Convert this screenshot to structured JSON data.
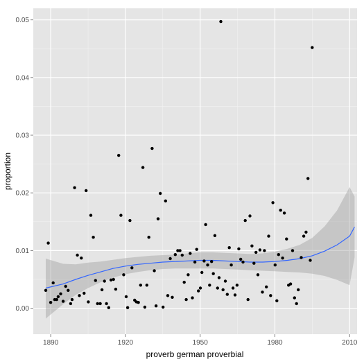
{
  "chart_data": {
    "type": "scatter",
    "title": "",
    "xlabel": "proverb german proverbial",
    "ylabel": "proportion",
    "xlim": [
      1883,
      2013
    ],
    "ylim": [
      -0.0045,
      0.052
    ],
    "x_ticks": [
      1890,
      1920,
      1950,
      1980,
      2010
    ],
    "y_ticks": [
      0.0,
      0.01,
      0.02,
      0.03,
      0.04,
      0.05
    ],
    "x_tick_labels": [
      "1890",
      "1920",
      "1950",
      "1980",
      "2010"
    ],
    "y_tick_labels": [
      "0.00",
      "0.01",
      "0.02",
      "0.03",
      "0.04",
      "0.05"
    ],
    "grid": true,
    "colors": {
      "panel": "#e5e5e5",
      "grid_major": "#ffffff",
      "grid_minor": "#f2f2f2",
      "points": "#000000",
      "smooth_line": "#3366ff",
      "ribbon": "#999999"
    },
    "points": [
      [
        1888,
        0.0031
      ],
      [
        1889,
        0.0113
      ],
      [
        1890,
        0.001
      ],
      [
        1891,
        0.0044
      ],
      [
        1891.6,
        0.0015
      ],
      [
        1892.4,
        0.0015
      ],
      [
        1893,
        0.002
      ],
      [
        1894,
        0.0025
      ],
      [
        1895,
        0.0012
      ],
      [
        1896,
        0.0038
      ],
      [
        1897,
        0.0031
      ],
      [
        1898,
        0.0008
      ],
      [
        1898.6,
        0.0015
      ],
      [
        1899.6,
        0.0209
      ],
      [
        1900.7,
        0.0092
      ],
      [
        1901.5,
        0.0022
      ],
      [
        1902.3,
        0.0087
      ],
      [
        1903.4,
        0.0026
      ],
      [
        1904.2,
        0.0204
      ],
      [
        1905.1,
        0.0011
      ],
      [
        1906.1,
        0.0161
      ],
      [
        1907.1,
        0.0123
      ],
      [
        1908,
        0.0048
      ],
      [
        1908.8,
        0.0008
      ],
      [
        1909.9,
        0.0008
      ],
      [
        1910.6,
        0.0032
      ],
      [
        1911.6,
        0.0047
      ],
      [
        1912.4,
        0.0008
      ],
      [
        1913.3,
        0.0001
      ],
      [
        1914.2,
        0.0049
      ],
      [
        1915.2,
        0.005
      ],
      [
        1916.1,
        0.0033
      ],
      [
        1917.3,
        0.0265
      ],
      [
        1918.2,
        0.0161
      ],
      [
        1919.3,
        0.0058
      ],
      [
        1920.3,
        0.002
      ],
      [
        1920.9,
        0.0001
      ],
      [
        1921.8,
        0.0152
      ],
      [
        1922.6,
        0.007
      ],
      [
        1923.7,
        0.0014
      ],
      [
        1924.4,
        0.0011
      ],
      [
        1925.2,
        0.001
      ],
      [
        1926.1,
        0.004
      ],
      [
        1927,
        0.0244
      ],
      [
        1927.8,
        0.0002
      ],
      [
        1928.6,
        0.004
      ],
      [
        1929.4,
        0.0123
      ],
      [
        1930.7,
        0.0277
      ],
      [
        1931.6,
        0.0065
      ],
      [
        1932.3,
        0.0004
      ],
      [
        1933.1,
        0.0155
      ],
      [
        1934,
        0.0199
      ],
      [
        1935.1,
        0.0002
      ],
      [
        1936.1,
        0.0186
      ],
      [
        1937,
        0.0022
      ],
      [
        1938,
        0.0086
      ],
      [
        1938.8,
        0.0019
      ],
      [
        1940,
        0.0093
      ],
      [
        1941,
        0.01
      ],
      [
        1941.9,
        0.01
      ],
      [
        1942.8,
        0.0092
      ],
      [
        1943.6,
        0.0045
      ],
      [
        1944.4,
        0.0015
      ],
      [
        1945.2,
        0.0058
      ],
      [
        1946,
        0.0095
      ],
      [
        1946.9,
        0.0018
      ],
      [
        1947.9,
        0.008
      ],
      [
        1948.6,
        0.0102
      ],
      [
        1949.3,
        0.003
      ],
      [
        1950.1,
        0.0035
      ],
      [
        1950.7,
        0.0062
      ],
      [
        1951.6,
        0.0082
      ],
      [
        1952.2,
        0.0145
      ],
      [
        1953,
        0.0075
      ],
      [
        1953.8,
        0.004
      ],
      [
        1954.6,
        0.0081
      ],
      [
        1955.3,
        0.006
      ],
      [
        1955.9,
        0.0126
      ],
      [
        1957,
        0.0035
      ],
      [
        1957.6,
        0.0053
      ],
      [
        1958.3,
        0.0497
      ],
      [
        1959.2,
        0.0032
      ],
      [
        1960.1,
        0.0047
      ],
      [
        1960.9,
        0.0024
      ],
      [
        1961.7,
        0.0105
      ],
      [
        1962.5,
        0.0075
      ],
      [
        1963.2,
        0.0035
      ],
      [
        1964,
        0.0023
      ],
      [
        1964.8,
        0.004
      ],
      [
        1965.5,
        0.0103
      ],
      [
        1966.3,
        0.0085
      ],
      [
        1967.2,
        0.008
      ],
      [
        1968.1,
        0.0152
      ],
      [
        1969.2,
        0.0015
      ],
      [
        1970,
        0.016
      ],
      [
        1970.8,
        0.0108
      ],
      [
        1971.6,
        0.0078
      ],
      [
        1972.4,
        0.0097
      ],
      [
        1973.2,
        0.0058
      ],
      [
        1974,
        0.0101
      ],
      [
        1975,
        0.0028
      ],
      [
        1975.8,
        0.01
      ],
      [
        1976.6,
        0.0037
      ],
      [
        1977.5,
        0.0125
      ],
      [
        1978.3,
        0.0022
      ],
      [
        1979.2,
        0.0183
      ],
      [
        1980.1,
        0.0075
      ],
      [
        1980.8,
        0.0013
      ],
      [
        1981.5,
        0.0093
      ],
      [
        1982.3,
        0.017
      ],
      [
        1983.1,
        0.0087
      ],
      [
        1983.8,
        0.0165
      ],
      [
        1984.7,
        0.012
      ],
      [
        1985.5,
        0.004
      ],
      [
        1986.3,
        0.0042
      ],
      [
        1987.1,
        0.01
      ],
      [
        1987.9,
        0.0018
      ],
      [
        1988.7,
        0.0008
      ],
      [
        1989.4,
        0.0032
      ],
      [
        1990.6,
        0.0088
      ],
      [
        1991.6,
        0.0125
      ],
      [
        1992.5,
        0.0132
      ],
      [
        1993.3,
        0.0225
      ],
      [
        1994.2,
        0.0083
      ],
      [
        1995,
        0.0452
      ]
    ],
    "smooth": {
      "x": [
        1888,
        1895,
        1900,
        1905,
        1910,
        1915,
        1920,
        1925,
        1930,
        1935,
        1940,
        1945,
        1950,
        1955,
        1960,
        1965,
        1970,
        1975,
        1980,
        1985,
        1990,
        1995,
        2000,
        2005,
        2010,
        2012
      ],
      "y": [
        0.0035,
        0.0042,
        0.005,
        0.0057,
        0.0063,
        0.0069,
        0.0073,
        0.0076,
        0.0078,
        0.008,
        0.0081,
        0.0082,
        0.0083,
        0.0083,
        0.0082,
        0.0081,
        0.008,
        0.008,
        0.0081,
        0.0083,
        0.0086,
        0.0091,
        0.0099,
        0.011,
        0.0125,
        0.0141
      ],
      "lower": [
        -0.0018,
        0.0007,
        0.0023,
        0.0035,
        0.0045,
        0.0053,
        0.0059,
        0.0063,
        0.0066,
        0.0068,
        0.0069,
        0.0069,
        0.0069,
        0.0069,
        0.0068,
        0.0067,
        0.0066,
        0.0065,
        0.0064,
        0.0063,
        0.0062,
        0.006,
        0.0056,
        0.0049,
        0.004,
        0.0088
      ],
      "upper": [
        0.0086,
        0.0077,
        0.0076,
        0.0079,
        0.0081,
        0.0084,
        0.0087,
        0.0089,
        0.0091,
        0.0092,
        0.0093,
        0.0095,
        0.0097,
        0.0097,
        0.0096,
        0.0095,
        0.0094,
        0.0095,
        0.0098,
        0.0103,
        0.011,
        0.0122,
        0.0142,
        0.017,
        0.021,
        0.0194
      ]
    }
  }
}
